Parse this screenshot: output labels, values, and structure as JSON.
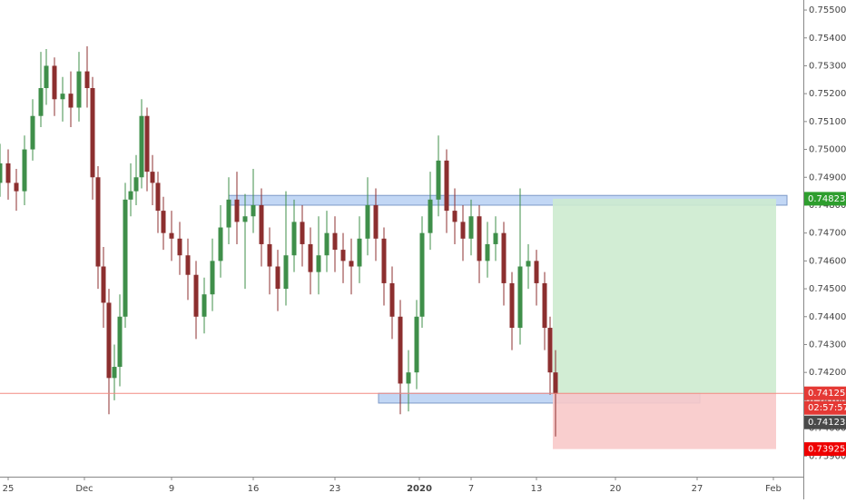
{
  "chart_data": {
    "type": "candlestick",
    "x": [
      0,
      3,
      6,
      9,
      12,
      15,
      17,
      20,
      23,
      26,
      29,
      32,
      34,
      36,
      38,
      40,
      42,
      44,
      46,
      48,
      50,
      52,
      54,
      56,
      58,
      60,
      63,
      66,
      69,
      72,
      75,
      78,
      81,
      84,
      87,
      90,
      93,
      96,
      99,
      102,
      105,
      108,
      111,
      114,
      117,
      120,
      123,
      126,
      129,
      132,
      135,
      138,
      141,
      144,
      147,
      150,
      153,
      155,
      158,
      161,
      164,
      167,
      170,
      173,
      176,
      179,
      182,
      185,
      188,
      191,
      194,
      197,
      200,
      202,
      204
    ],
    "open": [
      0.7488,
      0.7495,
      0.7488,
      0.7485,
      0.75,
      0.7512,
      0.7522,
      0.753,
      0.7518,
      0.752,
      0.7515,
      0.7528,
      0.7522,
      0.749,
      0.7458,
      0.7445,
      0.7418,
      0.7422,
      0.744,
      0.7482,
      0.7485,
      0.749,
      0.7512,
      0.7492,
      0.7488,
      0.7478,
      0.747,
      0.7468,
      0.7462,
      0.7455,
      0.744,
      0.7448,
      0.746,
      0.7472,
      0.7482,
      0.7474,
      0.7476,
      0.748,
      0.7466,
      0.7458,
      0.745,
      0.7462,
      0.7474,
      0.7466,
      0.7456,
      0.7462,
      0.747,
      0.7464,
      0.746,
      0.7458,
      0.7468,
      0.748,
      0.7468,
      0.7452,
      0.744,
      0.7416,
      0.742,
      0.744,
      0.747,
      0.7482,
      0.7496,
      0.7478,
      0.7474,
      0.7468,
      0.7476,
      0.746,
      0.7466,
      0.747,
      0.7452,
      0.7436,
      0.7458,
      0.746,
      0.7452,
      0.7436,
      0.742
    ],
    "high": [
      0.7502,
      0.75,
      0.7493,
      0.7505,
      0.7518,
      0.7535,
      0.7536,
      0.7533,
      0.7526,
      0.7528,
      0.7535,
      0.7537,
      0.7526,
      0.7494,
      0.7465,
      0.745,
      0.743,
      0.7448,
      0.7488,
      0.7495,
      0.7498,
      0.7518,
      0.7515,
      0.7498,
      0.7492,
      0.7483,
      0.7478,
      0.7474,
      0.7468,
      0.746,
      0.7454,
      0.7468,
      0.748,
      0.749,
      0.7492,
      0.7484,
      0.7493,
      0.7486,
      0.7472,
      0.7464,
      0.7485,
      0.7482,
      0.748,
      0.7472,
      0.7476,
      0.7478,
      0.7476,
      0.747,
      0.7468,
      0.7476,
      0.749,
      0.7486,
      0.7472,
      0.7458,
      0.7446,
      0.7428,
      0.7446,
      0.7476,
      0.7492,
      0.7505,
      0.75,
      0.7486,
      0.748,
      0.7482,
      0.748,
      0.7474,
      0.7476,
      0.7474,
      0.7456,
      0.7486,
      0.7466,
      0.7464,
      0.7456,
      0.744,
      0.7428
    ],
    "low": [
      0.7483,
      0.7482,
      0.7478,
      0.748,
      0.7496,
      0.7508,
      0.7516,
      0.7512,
      0.751,
      0.7508,
      0.751,
      0.7515,
      0.7482,
      0.745,
      0.7436,
      0.7405,
      0.741,
      0.7415,
      0.7436,
      0.7476,
      0.748,
      0.7486,
      0.7485,
      0.748,
      0.747,
      0.7464,
      0.746,
      0.7455,
      0.7446,
      0.7432,
      0.7434,
      0.7442,
      0.7454,
      0.7466,
      0.7466,
      0.745,
      0.747,
      0.7458,
      0.7448,
      0.7442,
      0.7444,
      0.7456,
      0.7458,
      0.7448,
      0.7448,
      0.7456,
      0.7456,
      0.7452,
      0.7448,
      0.7452,
      0.7462,
      0.746,
      0.7444,
      0.7432,
      0.7405,
      0.7406,
      0.7414,
      0.7436,
      0.7464,
      0.7476,
      0.747,
      0.7466,
      0.746,
      0.7462,
      0.7452,
      0.7454,
      0.746,
      0.7444,
      0.7428,
      0.743,
      0.745,
      0.7444,
      0.7428,
      0.7412,
      0.7397
    ],
    "close": [
      0.7495,
      0.7488,
      0.7485,
      0.75,
      0.7512,
      0.7522,
      0.753,
      0.7518,
      0.752,
      0.7515,
      0.7528,
      0.7522,
      0.749,
      0.7458,
      0.7445,
      0.7418,
      0.7422,
      0.744,
      0.7482,
      0.7485,
      0.749,
      0.7512,
      0.7492,
      0.7488,
      0.7478,
      0.747,
      0.7468,
      0.7462,
      0.7455,
      0.744,
      0.7448,
      0.746,
      0.7472,
      0.7482,
      0.7474,
      0.7476,
      0.748,
      0.7466,
      0.7458,
      0.745,
      0.7462,
      0.7474,
      0.7466,
      0.7456,
      0.7462,
      0.747,
      0.7464,
      0.746,
      0.7458,
      0.7468,
      0.748,
      0.7468,
      0.7452,
      0.744,
      0.7416,
      0.742,
      0.744,
      0.747,
      0.7482,
      0.7496,
      0.7478,
      0.7474,
      0.7468,
      0.7476,
      0.746,
      0.7466,
      0.747,
      0.7452,
      0.7436,
      0.7458,
      0.746,
      0.7452,
      0.7436,
      0.742,
      0.74123
    ],
    "up_color": "#3f8f4a",
    "down_color": "#8c2f2f",
    "xlim": [
      0,
      295
    ],
    "xticks": [
      {
        "value": 3,
        "label": "25"
      },
      {
        "value": 31,
        "label": "Dec"
      },
      {
        "value": 63,
        "label": "9"
      },
      {
        "value": 93,
        "label": "16"
      },
      {
        "value": 123,
        "label": "23"
      },
      {
        "value": 154,
        "label": "2020",
        "emphasis": true
      },
      {
        "value": 173,
        "label": "7"
      },
      {
        "value": 197,
        "label": "13"
      },
      {
        "value": 226,
        "label": "20"
      },
      {
        "value": 256,
        "label": "27"
      },
      {
        "value": 284,
        "label": "Feb"
      }
    ],
    "ylim": [
      0.73826,
      0.75536
    ],
    "yticks": [
      {
        "value": 0.755,
        "label": "0.75500"
      },
      {
        "value": 0.754,
        "label": "0.75400"
      },
      {
        "value": 0.753,
        "label": "0.75300"
      },
      {
        "value": 0.752,
        "label": "0.75200"
      },
      {
        "value": 0.751,
        "label": "0.75100"
      },
      {
        "value": 0.75,
        "label": "0.75000"
      },
      {
        "value": 0.749,
        "label": "0.74900"
      },
      {
        "value": 0.748,
        "label": "0.74800"
      },
      {
        "value": 0.747,
        "label": "0.74700"
      },
      {
        "value": 0.746,
        "label": "0.74600"
      },
      {
        "value": 0.745,
        "label": "0.74500"
      },
      {
        "value": 0.744,
        "label": "0.74400"
      },
      {
        "value": 0.743,
        "label": "0.74300"
      },
      {
        "value": 0.742,
        "label": "0.74200"
      },
      {
        "value": 0.741,
        "label": "0.74100"
      },
      {
        "value": 0.74,
        "label": "0.74000"
      },
      {
        "value": 0.739,
        "label": "0.73900"
      }
    ],
    "zones": [
      {
        "x": [
          84,
          289
        ],
        "y": [
          0.748,
          0.74835
        ],
        "color": "#bcd3f5",
        "edge": "#6f8fc2"
      },
      {
        "x": [
          139,
          257
        ],
        "y": [
          0.7409,
          0.74125
        ],
        "color": "#bcd3f5",
        "edge": "#6f8fc2"
      },
      {
        "x": [
          203,
          285
        ],
        "y": [
          0.74125,
          0.74823
        ],
        "color": "#cdebcf",
        "edge": "none"
      },
      {
        "x": [
          203,
          285
        ],
        "y": [
          0.73925,
          0.74125
        ],
        "color": "#f8c9c9",
        "edge": "none"
      }
    ],
    "price_line": {
      "value": 0.74125,
      "color": "#f28b82"
    },
    "price_labels": [
      {
        "value": 0.74823,
        "label": "0.74823",
        "color": "#2e9e2e"
      },
      {
        "value": 0.74125,
        "label": "0.74125",
        "color": "#e53935",
        "countdown": "02:57:57"
      },
      {
        "value": 0.74123,
        "label": "0.74123",
        "color": "#4a4a4a"
      },
      {
        "value": 0.73925,
        "label": "0.73925",
        "color": "#ee0000"
      }
    ]
  }
}
